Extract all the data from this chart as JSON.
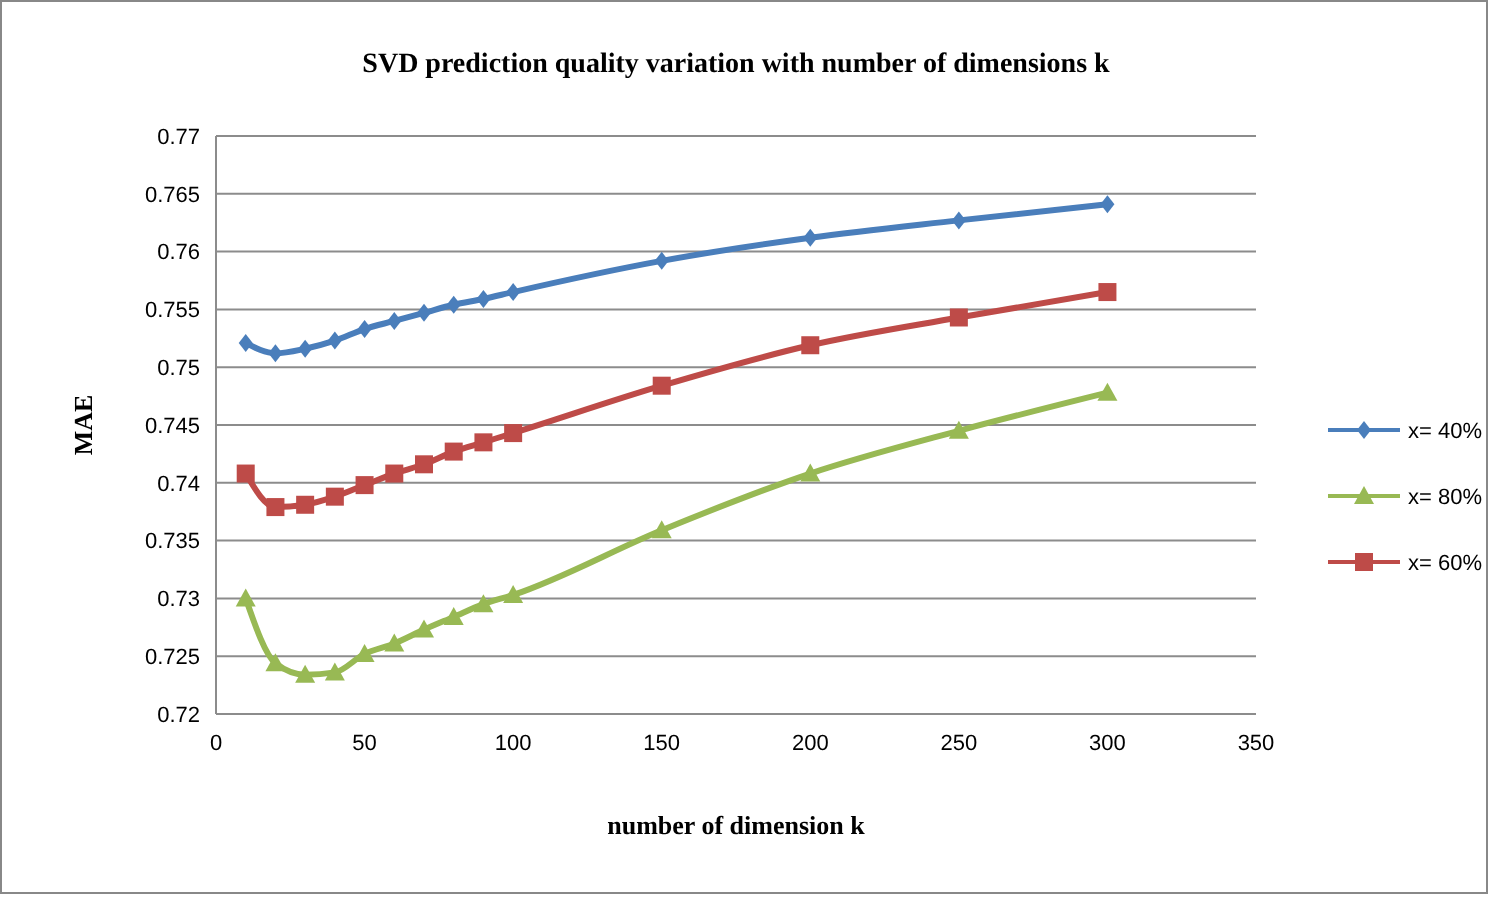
{
  "chart_data": {
    "type": "line",
    "title": "SVD prediction quality variation with number of dimensions k",
    "xlabel": "number of dimension k",
    "ylabel": "MAE",
    "x": [
      10,
      20,
      30,
      40,
      50,
      60,
      70,
      80,
      90,
      100,
      150,
      200,
      250,
      300
    ],
    "series": [
      {
        "name": "x= 40%",
        "color": "#4a7ebb",
        "marker": "diamond",
        "values": [
          0.7521,
          0.7512,
          0.7516,
          0.7523,
          0.7533,
          0.754,
          0.7547,
          0.7554,
          0.7559,
          0.7565,
          0.7592,
          0.7612,
          0.7627,
          0.7641
        ]
      },
      {
        "name": "x= 80%",
        "color": "#98b954",
        "marker": "triangle",
        "values": [
          0.73,
          0.7244,
          0.7234,
          0.7236,
          0.7252,
          0.7261,
          0.7273,
          0.7284,
          0.7295,
          0.7303,
          0.7359,
          0.7408,
          0.7445,
          0.7478
        ]
      },
      {
        "name": "x= 60%",
        "color": "#be4b48",
        "marker": "square",
        "values": [
          0.7408,
          0.7379,
          0.7381,
          0.7388,
          0.7398,
          0.7408,
          0.7416,
          0.7427,
          0.7435,
          0.7443,
          0.7484,
          0.7519,
          0.7543,
          0.7565
        ]
      }
    ],
    "xlim": [
      0,
      350
    ],
    "xticks": [
      0,
      50,
      100,
      150,
      200,
      250,
      300,
      350
    ],
    "ylim": [
      0.72,
      0.77
    ],
    "yticks": [
      0.72,
      0.725,
      0.73,
      0.735,
      0.74,
      0.745,
      0.75,
      0.755,
      0.76,
      0.765,
      0.77
    ],
    "grid": "y",
    "legend": "right"
  }
}
